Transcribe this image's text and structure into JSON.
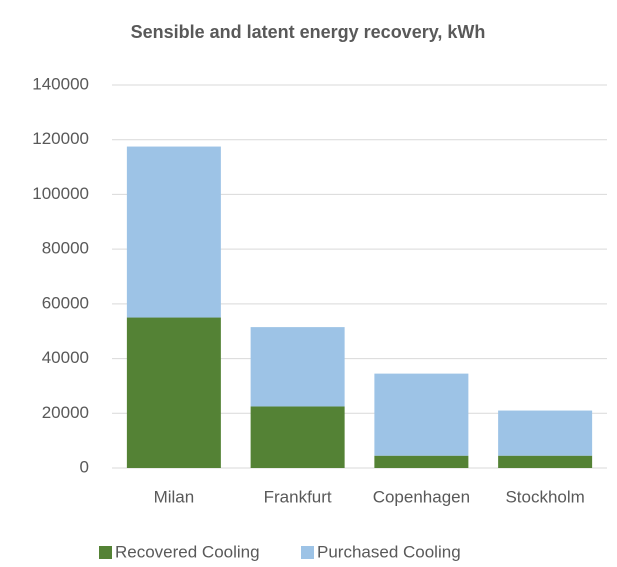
{
  "chart_data": {
    "type": "stacked_bar",
    "title": "Sensible and latent energy recovery, kWh",
    "categories": [
      "Milan",
      "Frankfurt",
      "Copenhagen",
      "Stockholm"
    ],
    "series": [
      {
        "name": "Recovered Cooling",
        "color": "#548235",
        "values": [
          55000,
          22500,
          4500,
          4500
        ]
      },
      {
        "name": "Purchased Cooling",
        "color": "#9dc3e6",
        "values": [
          62500,
          29000,
          30000,
          16500
        ]
      }
    ],
    "ylim": [
      0,
      140000
    ],
    "yticks": [
      0,
      20000,
      40000,
      60000,
      80000,
      100000,
      120000,
      140000
    ],
    "grid": true,
    "legend": "bottom"
  }
}
